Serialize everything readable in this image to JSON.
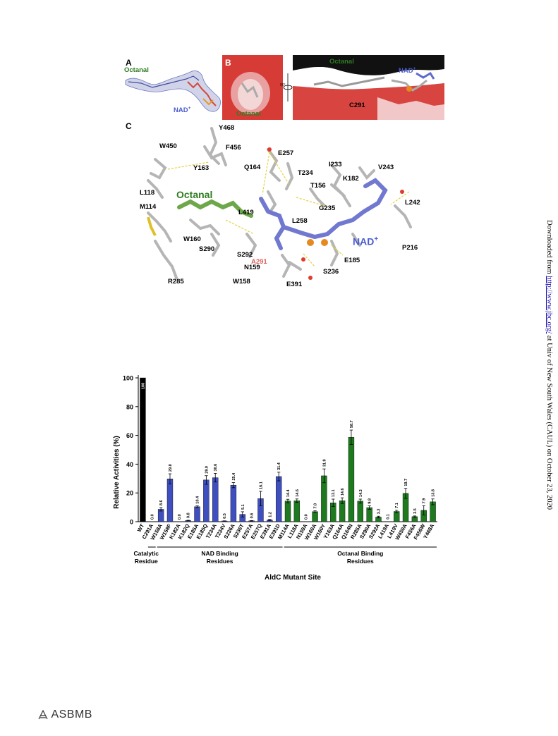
{
  "figure": {
    "panel_a": {
      "letter": "A",
      "label_octanal": "Octanal",
      "label_nad": "NAD+"
    },
    "panel_b": {
      "letter": "B",
      "label_octanal_left": "Octanal",
      "rotation": "90°",
      "label_octanal_right": "Octanal",
      "label_nad": "NAD+",
      "label_c291": "C291"
    },
    "panel_c": {
      "letter": "C",
      "ligand_octanal": "Octanal",
      "ligand_nad": "NAD+",
      "mutant_label": "A291",
      "residues": [
        "Y468",
        "W450",
        "F456",
        "E257",
        "Y163",
        "Q164",
        "T234",
        "I233",
        "V243",
        "K182",
        "T156",
        "L118",
        "L419",
        "G235",
        "L242",
        "M114",
        "L258",
        "W160",
        "S290",
        "S292",
        "N159",
        "E185",
        "P216",
        "W158",
        "S236",
        "E391",
        "R285"
      ]
    }
  },
  "chart_data": {
    "type": "bar",
    "ylabel": "Relative Activities (%)",
    "xlabel": "AldC Mutant Site",
    "ylim": [
      0,
      100
    ],
    "yticks": [
      0,
      20,
      40,
      60,
      80,
      100
    ],
    "categories": [
      "WT",
      "C291A",
      "W158A",
      "W158F",
      "K182A",
      "K182Q",
      "E185A",
      "E185Q",
      "T234A",
      "T234V",
      "S236A",
      "S236T",
      "E257A",
      "E257Q",
      "E391A",
      "E391D",
      "M114A",
      "L118A",
      "N159A",
      "W160A",
      "W160Y",
      "Y163A",
      "Q164A",
      "Q164N",
      "R285A",
      "S290A",
      "S292A",
      "L419A",
      "L419V",
      "W450A",
      "F456A",
      "F456W",
      "Y468A"
    ],
    "values": [
      100,
      0.0,
      8.6,
      29.8,
      0.0,
      0.8,
      10.4,
      29.0,
      30.6,
      0.5,
      25.4,
      5.1,
      0.6,
      16.1,
      1.2,
      31.4,
      14.4,
      14.6,
      0.0,
      7.0,
      31.9,
      13.1,
      14.6,
      58.7,
      14.3,
      9.8,
      3.2,
      0.1,
      7.1,
      19.7,
      3.5,
      7.9,
      13.8
    ],
    "errors": [
      0,
      0,
      1.2,
      3.5,
      0,
      0.2,
      0.6,
      3.0,
      3.0,
      0.1,
      1.8,
      1.8,
      0.2,
      5.0,
      0.4,
      3.0,
      1.2,
      1.2,
      0,
      0.6,
      4.8,
      2.6,
      2.0,
      5.0,
      1.4,
      1.2,
      0.6,
      0,
      0.8,
      3.5,
      0.5,
      3.2,
      2.0
    ],
    "value_labels": [
      "100",
      "0.0",
      "8.6",
      "29.8",
      "0.0",
      "0.8",
      "10.4",
      "29.0",
      "30.6",
      "0.5",
      "25.4",
      "5.1",
      "0.6",
      "16.1",
      "1.2",
      "31.4",
      "14.4",
      "14.6",
      "0.0",
      "7.0",
      "31.9",
      "13.1",
      "14.6",
      "58.7",
      "14.3",
      "9.8",
      "3.2",
      "0.1",
      "7.1",
      "19.7",
      "3.5",
      "7.9",
      "13.8"
    ],
    "groups": [
      {
        "name": "",
        "start": 0,
        "end": 0,
        "color": "#000000"
      },
      {
        "name": "Catalytic Residue",
        "start": 1,
        "end": 1,
        "color": "#000000"
      },
      {
        "name": "NAD Binding Residues",
        "start": 2,
        "end": 15,
        "color": "#3f4fc0"
      },
      {
        "name": "Octanal Binding Residues",
        "start": 16,
        "end": 32,
        "color": "#1e7a1e"
      }
    ],
    "grid": false,
    "legend": "none"
  },
  "sidebar": {
    "prefix": "Downloaded from ",
    "link": "http://www.jbc.org/",
    "suffix": " at Univ of New South Wales (CAUL) on October 23, 2020"
  },
  "footer": {
    "logo_text": "ASBMB"
  },
  "colors": {
    "nad": "#4b5ccf",
    "octanal": "#2e7d22",
    "surface_red": "#d9403c",
    "bar_blue": "#3f4fc0",
    "bar_green": "#1e7a1e"
  }
}
